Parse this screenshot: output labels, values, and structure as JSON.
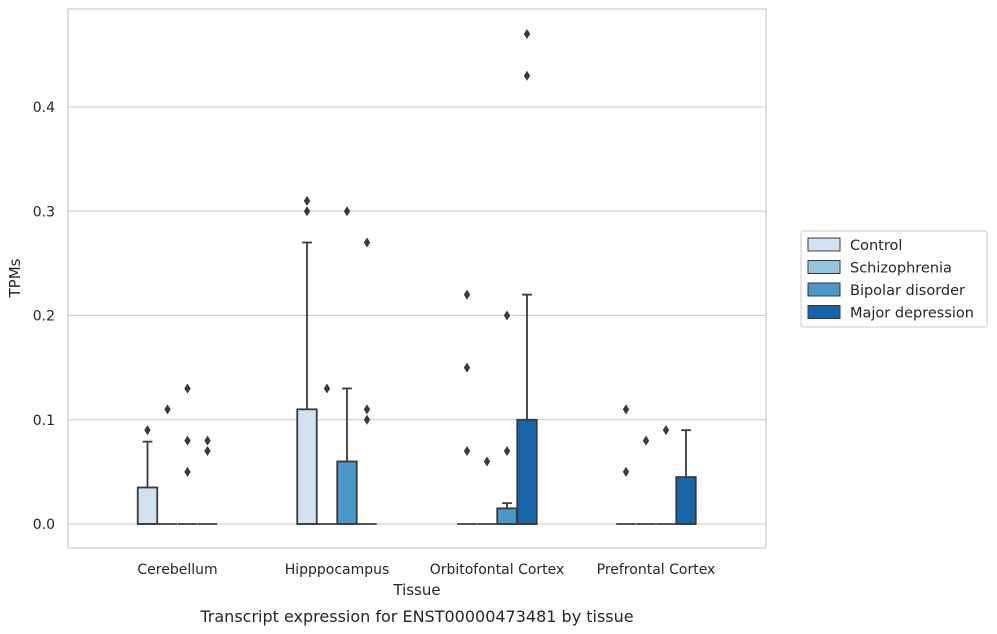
{
  "caption": "Transcript expression for ENST00000473481 by tissue",
  "chart_data": {
    "type": "box",
    "title": "",
    "xlabel": "Tissue",
    "ylabel": "TPMs",
    "ylim": [
      -0.023,
      0.495
    ],
    "yticks": [
      "0.0",
      "0.1",
      "0.2",
      "0.3",
      "0.4"
    ],
    "ytick_values": [
      0,
      0.1,
      0.2,
      0.3,
      0.4
    ],
    "grid": "horizontal",
    "legend_position": "right",
    "categories": [
      "Cerebellum",
      "Hipppocampus",
      "Orbitofontal Cortex",
      "Prefrontal Cortex"
    ],
    "series": [
      {
        "name": "Control",
        "color": "#d0e1f2",
        "boxes": [
          {
            "q1": 0,
            "median": 0,
            "q3": 0.035,
            "whisker_low": 0,
            "whisker_high": 0.079,
            "fliers": [
              0.09
            ]
          },
          {
            "q1": 0,
            "median": 0,
            "q3": 0.11,
            "whisker_low": 0,
            "whisker_high": 0.27,
            "fliers": [
              0.3,
              0.31
            ]
          },
          {
            "q1": 0,
            "median": 0,
            "q3": 0,
            "whisker_low": 0,
            "whisker_high": 0,
            "fliers": [
              0.07,
              0.15,
              0.22
            ]
          },
          {
            "q1": 0,
            "median": 0,
            "q3": 0,
            "whisker_low": 0,
            "whisker_high": 0,
            "fliers": [
              0.05,
              0.11
            ]
          }
        ]
      },
      {
        "name": "Schizophrenia",
        "color": "#94c4df",
        "boxes": [
          {
            "q1": 0,
            "median": 0,
            "q3": 0,
            "whisker_low": 0,
            "whisker_high": 0,
            "fliers": [
              0.11
            ]
          },
          {
            "q1": 0,
            "median": 0,
            "q3": 0,
            "whisker_low": 0,
            "whisker_high": 0,
            "fliers": [
              0.13
            ]
          },
          {
            "q1": 0,
            "median": 0,
            "q3": 0,
            "whisker_low": 0,
            "whisker_high": 0,
            "fliers": [
              0.06
            ]
          },
          {
            "q1": 0,
            "median": 0,
            "q3": 0,
            "whisker_low": 0,
            "whisker_high": 0,
            "fliers": [
              0.08
            ]
          }
        ]
      },
      {
        "name": "Bipolar disorder",
        "color": "#4a98c9",
        "boxes": [
          {
            "q1": 0,
            "median": 0,
            "q3": 0,
            "whisker_low": 0,
            "whisker_high": 0,
            "fliers": [
              0.05,
              0.08,
              0.13
            ]
          },
          {
            "q1": 0,
            "median": 0,
            "q3": 0.06,
            "whisker_low": 0,
            "whisker_high": 0.13,
            "fliers": [
              0.3
            ]
          },
          {
            "q1": 0,
            "median": 0,
            "q3": 0.015,
            "whisker_low": 0,
            "whisker_high": 0.02,
            "fliers": [
              0.07,
              0.2
            ]
          },
          {
            "q1": 0,
            "median": 0,
            "q3": 0,
            "whisker_low": 0,
            "whisker_high": 0,
            "fliers": [
              0.09
            ]
          }
        ]
      },
      {
        "name": "Major depression",
        "color": "#1764ab",
        "boxes": [
          {
            "q1": 0,
            "median": 0,
            "q3": 0,
            "whisker_low": 0,
            "whisker_high": 0,
            "fliers": [
              0.07,
              0.08
            ]
          },
          {
            "q1": 0,
            "median": 0,
            "q3": 0,
            "whisker_low": 0,
            "whisker_high": 0,
            "fliers": [
              0.1,
              0.11,
              0.27
            ]
          },
          {
            "q1": 0,
            "median": 0,
            "q3": 0.1,
            "whisker_low": 0,
            "whisker_high": 0.22,
            "fliers": [
              0.43,
              0.47
            ]
          },
          {
            "q1": 0,
            "median": 0,
            "q3": 0.045,
            "whisker_low": 0,
            "whisker_high": 0.09,
            "fliers": []
          }
        ]
      }
    ]
  }
}
